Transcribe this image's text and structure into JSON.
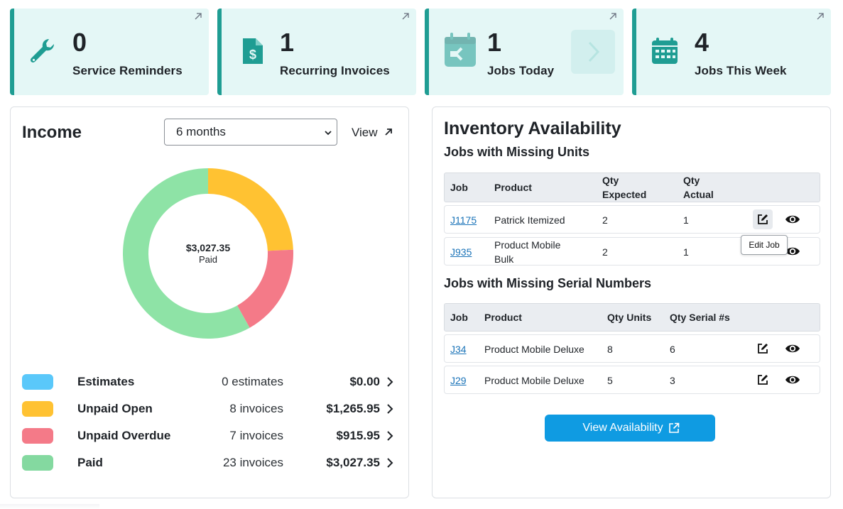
{
  "stats": [
    {
      "value": "0",
      "label": "Service Reminders",
      "icon": "wrench-icon"
    },
    {
      "value": "1",
      "label": "Recurring Invoices",
      "icon": "invoice-dollar-icon"
    },
    {
      "value": "1",
      "label": "Jobs Today",
      "icon": "calendar-icon"
    },
    {
      "value": "4",
      "label": "Jobs This Week",
      "icon": "calendar-grid-icon"
    }
  ],
  "income": {
    "title": "Income",
    "period_selected": "6 months",
    "view_label": "View",
    "center_amount": "$3,027.35",
    "center_label": "Paid",
    "legend": [
      {
        "name": "Estimates",
        "count": "0 estimates",
        "amount": "$0.00",
        "color": "#5ac8fa"
      },
      {
        "name": "Unpaid Open",
        "count": "8 invoices",
        "amount": "$1,265.95",
        "color": "#ffc232"
      },
      {
        "name": "Unpaid Overdue",
        "count": "7 invoices",
        "amount": "$915.95",
        "color": "#f47a88"
      },
      {
        "name": "Paid",
        "count": "23 invoices",
        "amount": "$3,027.35",
        "color": "#84d9a0"
      }
    ],
    "chart_data": {
      "type": "pie",
      "categories": [
        "Estimates",
        "Unpaid Open",
        "Unpaid Overdue",
        "Paid"
      ],
      "values": [
        0.0,
        1265.95,
        915.95,
        3027.35
      ],
      "colors": [
        "#5ac8fa",
        "#ffc232",
        "#f47a88",
        "#8ee3a6"
      ]
    }
  },
  "inventory": {
    "title": "Inventory Availability",
    "missing_units": {
      "title": "Jobs with Missing Units",
      "headers": {
        "job": "Job",
        "product": "Product",
        "qty_expected_1": "Qty",
        "qty_expected_2": "Expected",
        "qty_actual_1": "Qty",
        "qty_actual_2": "Actual"
      },
      "rows": [
        {
          "job": "J1175",
          "product_1": "Patrick Itemized",
          "product_2": "",
          "expected": "2",
          "actual": "1"
        },
        {
          "job": "J935",
          "product_1": "Product Mobile",
          "product_2": "Bulk",
          "expected": "2",
          "actual": "1"
        }
      ]
    },
    "tooltip": "Edit Job",
    "missing_serials": {
      "title": "Jobs with Missing Serial Numbers",
      "headers": {
        "job": "Job",
        "product": "Product",
        "qty_units": "Qty Units",
        "qty_serial": "Qty Serial #s"
      },
      "rows": [
        {
          "job": "J34",
          "product": "Product Mobile Deluxe",
          "units": "8",
          "serials": "6"
        },
        {
          "job": "J29",
          "product": "Product Mobile Deluxe",
          "units": "5",
          "serials": "3"
        }
      ]
    },
    "button_label": "View Availability"
  },
  "colors": {
    "accent_teal": "#1f9d93",
    "card_bg": "#e4f7f6",
    "button_blue": "#0f9be2",
    "link_blue": "#1a73b8"
  }
}
